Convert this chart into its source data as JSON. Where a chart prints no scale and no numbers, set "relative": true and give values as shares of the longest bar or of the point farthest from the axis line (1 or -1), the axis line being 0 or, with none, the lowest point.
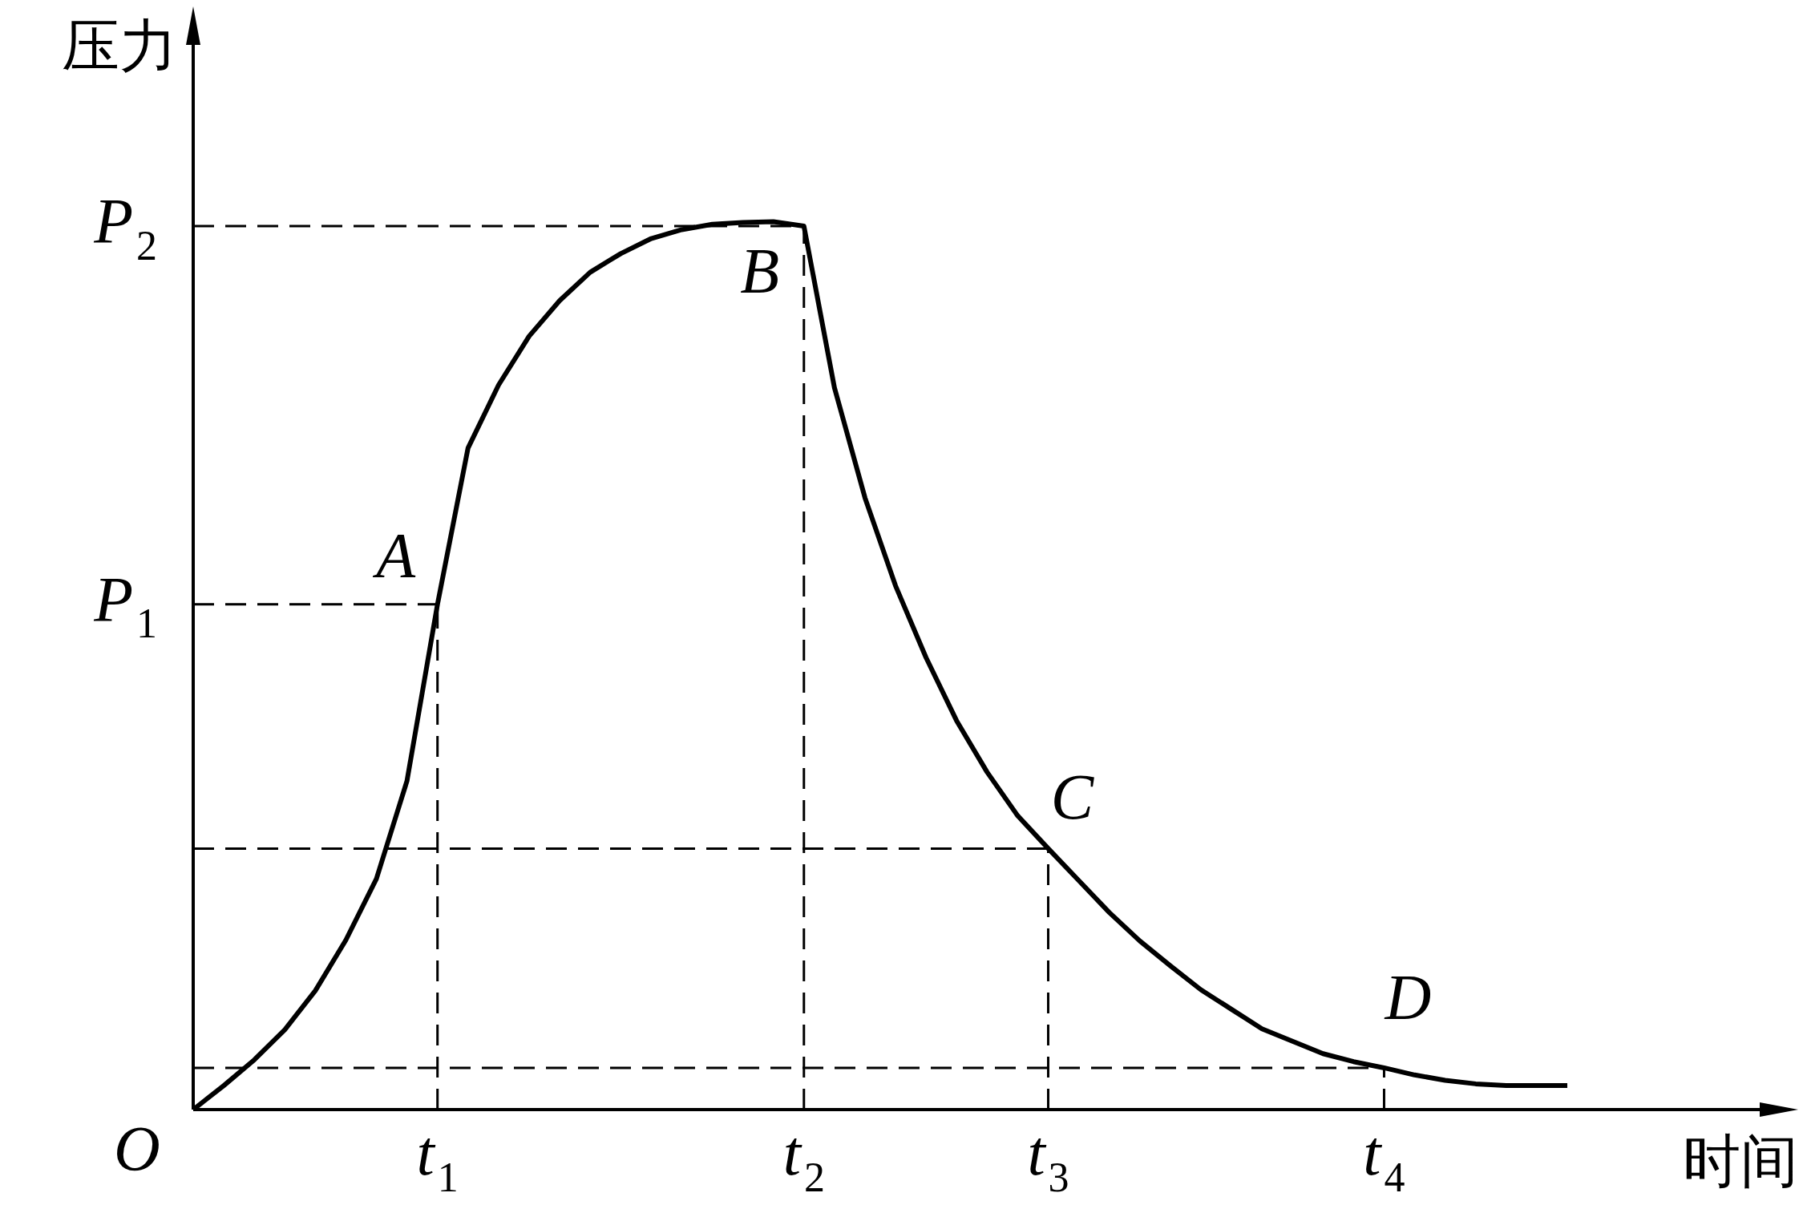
{
  "chart_data": {
    "type": "line",
    "xlabel": "时间",
    "ylabel": "压力",
    "relative": true,
    "legend": false,
    "marker": "none",
    "line_style": "solid",
    "categories": [
      null,
      null,
      null,
      null,
      null,
      null,
      null,
      null,
      "t$_{1}$",
      null,
      null,
      null,
      null,
      null,
      null,
      null,
      null,
      null,
      null,
      null,
      "t$_{2}$",
      null,
      null,
      null,
      null,
      null,
      null,
      null,
      "t$_{3}$",
      null,
      null,
      null,
      null,
      null,
      null,
      null,
      null,
      null,
      null,
      "t$_{4}$",
      null,
      null,
      null,
      null,
      null,
      null
    ],
    "series": [
      {
        "color": "#000000",
        "values": [
          0,
          0.027,
          0.056,
          0.09,
          0.134,
          0.191,
          0.26,
          0.37,
          0.569,
          0.745,
          0.816,
          0.871,
          0.911,
          0.943,
          0.964,
          0.981,
          0.991,
          0.997,
          0.999,
          1,
          0.995,
          0.813,
          0.689,
          0.59,
          0.509,
          0.438,
          0.38,
          0.331,
          0.294,
          0.258,
          0.222,
          0.19,
          0.162,
          0.135,
          0.113,
          0.091,
          0.077,
          0.063,
          0.054,
          0.047,
          0.039,
          0.033,
          0.029,
          0.027,
          0.027,
          0.027
        ]
      }
    ],
    "ref_lines": [
      {
        "axis": "y",
        "value": 0.569,
        "label": "P$_{1}$",
        "line_style": "dashed"
      },
      {
        "axis": "y",
        "value": 0.995,
        "label": "P$_{2}$",
        "line_style": "dashed"
      },
      {
        "axis": "y",
        "value": 0.294,
        "line_style": "dashed"
      },
      {
        "axis": "y",
        "value": 0.047,
        "line_style": "dashed"
      }
    ],
    "annotations": [
      "O",
      {
        "text": "A",
        "x": "t$_{1}$",
        "y": 0.569
      },
      {
        "text": "B",
        "x": "t$_{2}$",
        "y": 0.995
      },
      {
        "text": "C",
        "x": "t$_{3}$",
        "y": 0.294
      },
      {
        "text": "D",
        "x": "t$_{4}$",
        "y": 0.047
      }
    ]
  }
}
